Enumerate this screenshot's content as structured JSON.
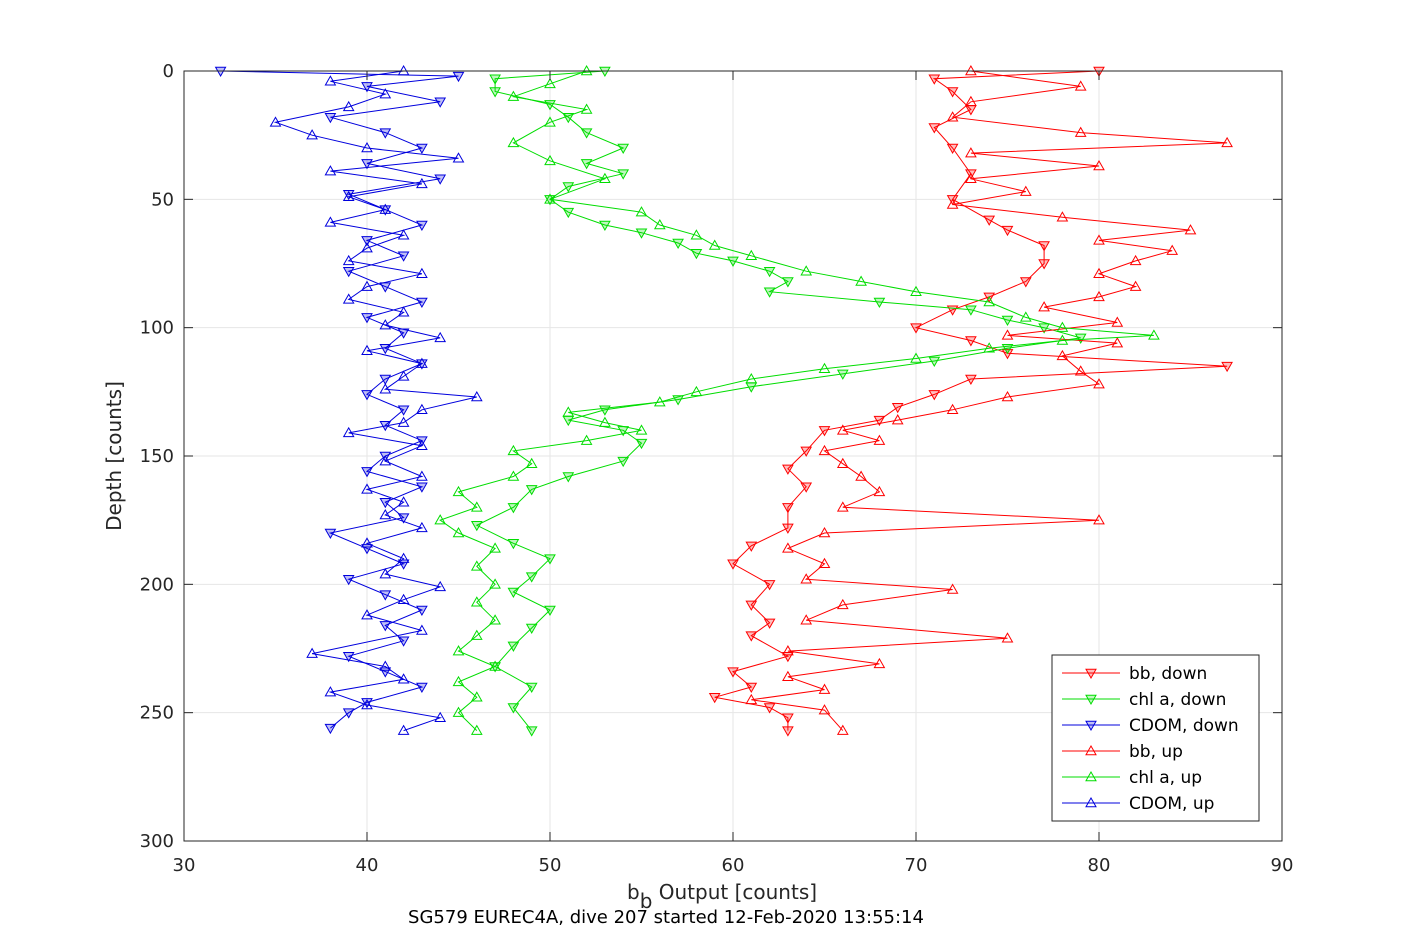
{
  "chart_data": {
    "type": "line",
    "xlabel_main": "b",
    "xlabel_sub": "b",
    "xlabel_rest": " Output [counts]",
    "ylabel": "Depth [counts]",
    "caption": "SG579 EUREC4A, dive 207 started 12-Feb-2020 13:55:14",
    "xlim": [
      30,
      90
    ],
    "ylim": [
      0,
      300
    ],
    "y_reversed": true,
    "grid": true,
    "legend_position": "bottom-right",
    "x_ticks": [
      "30",
      "40",
      "50",
      "60",
      "70",
      "80",
      "90"
    ],
    "y_ticks": [
      "0",
      "50",
      "100",
      "150",
      "200",
      "250",
      "300"
    ],
    "series": [
      {
        "name": "bb, down",
        "color": "#ff0000",
        "marker": "triangle-down",
        "points": [
          [
            80,
            0
          ],
          [
            71,
            3
          ],
          [
            72,
            8
          ],
          [
            73,
            15
          ],
          [
            71,
            22
          ],
          [
            72,
            30
          ],
          [
            73,
            40
          ],
          [
            72,
            50
          ],
          [
            74,
            58
          ],
          [
            75,
            62
          ],
          [
            77,
            68
          ],
          [
            77,
            75
          ],
          [
            76,
            82
          ],
          [
            74,
            88
          ],
          [
            72,
            93
          ],
          [
            70,
            100
          ],
          [
            73,
            105
          ],
          [
            75,
            110
          ],
          [
            87,
            115
          ],
          [
            73,
            120
          ],
          [
            71,
            126
          ],
          [
            69,
            131
          ],
          [
            68,
            136
          ],
          [
            65,
            140
          ],
          [
            64,
            148
          ],
          [
            63,
            155
          ],
          [
            64,
            162
          ],
          [
            63,
            170
          ],
          [
            63,
            178
          ],
          [
            61,
            185
          ],
          [
            60,
            192
          ],
          [
            62,
            200
          ],
          [
            61,
            208
          ],
          [
            62,
            215
          ],
          [
            61,
            220
          ],
          [
            63,
            228
          ],
          [
            60,
            234
          ],
          [
            61,
            240
          ],
          [
            59,
            244
          ],
          [
            62,
            248
          ],
          [
            63,
            252
          ],
          [
            63,
            257
          ]
        ]
      },
      {
        "name": "chl a, down",
        "color": "#00dd00",
        "marker": "triangle-down",
        "points": [
          [
            53,
            0
          ],
          [
            47,
            3
          ],
          [
            47,
            8
          ],
          [
            50,
            13
          ],
          [
            51,
            18
          ],
          [
            52,
            24
          ],
          [
            54,
            30
          ],
          [
            52,
            36
          ],
          [
            54,
            40
          ],
          [
            51,
            45
          ],
          [
            50,
            50
          ],
          [
            51,
            55
          ],
          [
            53,
            60
          ],
          [
            55,
            63
          ],
          [
            57,
            67
          ],
          [
            58,
            71
          ],
          [
            60,
            74
          ],
          [
            62,
            78
          ],
          [
            63,
            82
          ],
          [
            62,
            86
          ],
          [
            68,
            90
          ],
          [
            73,
            93
          ],
          [
            75,
            97
          ],
          [
            77,
            100
          ],
          [
            79,
            104
          ],
          [
            75,
            108
          ],
          [
            71,
            113
          ],
          [
            66,
            118
          ],
          [
            61,
            123
          ],
          [
            57,
            128
          ],
          [
            53,
            132
          ],
          [
            51,
            136
          ],
          [
            54,
            140
          ],
          [
            55,
            145
          ],
          [
            54,
            152
          ],
          [
            51,
            158
          ],
          [
            49,
            163
          ],
          [
            48,
            170
          ],
          [
            46,
            177
          ],
          [
            48,
            184
          ],
          [
            50,
            190
          ],
          [
            49,
            197
          ],
          [
            48,
            203
          ],
          [
            50,
            210
          ],
          [
            49,
            217
          ],
          [
            48,
            224
          ],
          [
            47,
            232
          ],
          [
            49,
            240
          ],
          [
            48,
            248
          ],
          [
            49,
            257
          ]
        ]
      },
      {
        "name": "CDOM, down",
        "color": "#0000dd",
        "marker": "triangle-down",
        "points": [
          [
            32,
            0
          ],
          [
            45,
            2
          ],
          [
            40,
            6
          ],
          [
            44,
            12
          ],
          [
            38,
            18
          ],
          [
            41,
            24
          ],
          [
            43,
            30
          ],
          [
            40,
            36
          ],
          [
            44,
            42
          ],
          [
            39,
            48
          ],
          [
            41,
            54
          ],
          [
            43,
            60
          ],
          [
            40,
            66
          ],
          [
            42,
            72
          ],
          [
            39,
            78
          ],
          [
            41,
            84
          ],
          [
            43,
            90
          ],
          [
            40,
            96
          ],
          [
            42,
            102
          ],
          [
            41,
            108
          ],
          [
            43,
            114
          ],
          [
            41,
            120
          ],
          [
            40,
            126
          ],
          [
            42,
            132
          ],
          [
            41,
            138
          ],
          [
            43,
            144
          ],
          [
            41,
            150
          ],
          [
            40,
            156
          ],
          [
            43,
            162
          ],
          [
            41,
            168
          ],
          [
            42,
            174
          ],
          [
            38,
            180
          ],
          [
            40,
            186
          ],
          [
            42,
            192
          ],
          [
            39,
            198
          ],
          [
            41,
            204
          ],
          [
            43,
            210
          ],
          [
            41,
            216
          ],
          [
            42,
            222
          ],
          [
            39,
            228
          ],
          [
            41,
            234
          ],
          [
            43,
            240
          ],
          [
            40,
            246
          ],
          [
            39,
            250
          ],
          [
            38,
            256
          ]
        ]
      },
      {
        "name": "bb, up",
        "color": "#ff0000",
        "marker": "triangle-up",
        "points": [
          [
            73,
            0
          ],
          [
            79,
            6
          ],
          [
            73,
            12
          ],
          [
            72,
            18
          ],
          [
            79,
            24
          ],
          [
            87,
            28
          ],
          [
            73,
            32
          ],
          [
            80,
            37
          ],
          [
            73,
            42
          ],
          [
            76,
            47
          ],
          [
            72,
            52
          ],
          [
            78,
            57
          ],
          [
            85,
            62
          ],
          [
            80,
            66
          ],
          [
            84,
            70
          ],
          [
            82,
            74
          ],
          [
            80,
            79
          ],
          [
            82,
            84
          ],
          [
            80,
            88
          ],
          [
            77,
            92
          ],
          [
            81,
            98
          ],
          [
            75,
            103
          ],
          [
            81,
            106
          ],
          [
            78,
            111
          ],
          [
            79,
            117
          ],
          [
            80,
            122
          ],
          [
            75,
            127
          ],
          [
            72,
            132
          ],
          [
            69,
            136
          ],
          [
            66,
            140
          ],
          [
            68,
            144
          ],
          [
            65,
            148
          ],
          [
            66,
            153
          ],
          [
            67,
            158
          ],
          [
            68,
            164
          ],
          [
            66,
            170
          ],
          [
            80,
            175
          ],
          [
            65,
            180
          ],
          [
            63,
            186
          ],
          [
            65,
            192
          ],
          [
            64,
            198
          ],
          [
            72,
            202
          ],
          [
            66,
            208
          ],
          [
            64,
            214
          ],
          [
            75,
            221
          ],
          [
            63,
            226
          ],
          [
            68,
            231
          ],
          [
            63,
            236
          ],
          [
            65,
            241
          ],
          [
            61,
            245
          ],
          [
            65,
            249
          ],
          [
            66,
            257
          ]
        ]
      },
      {
        "name": "chl a, up",
        "color": "#00dd00",
        "marker": "triangle-up",
        "points": [
          [
            52,
            0
          ],
          [
            50,
            5
          ],
          [
            48,
            10
          ],
          [
            52,
            15
          ],
          [
            50,
            20
          ],
          [
            48,
            28
          ],
          [
            50,
            35
          ],
          [
            53,
            42
          ],
          [
            50,
            50
          ],
          [
            55,
            55
          ],
          [
            56,
            60
          ],
          [
            58,
            64
          ],
          [
            59,
            68
          ],
          [
            61,
            72
          ],
          [
            64,
            78
          ],
          [
            67,
            82
          ],
          [
            70,
            86
          ],
          [
            74,
            90
          ],
          [
            76,
            96
          ],
          [
            78,
            100
          ],
          [
            83,
            103
          ],
          [
            78,
            105
          ],
          [
            74,
            108
          ],
          [
            70,
            112
          ],
          [
            65,
            116
          ],
          [
            61,
            120
          ],
          [
            58,
            125
          ],
          [
            56,
            129
          ],
          [
            51,
            133
          ],
          [
            53,
            137
          ],
          [
            55,
            140
          ],
          [
            52,
            144
          ],
          [
            48,
            148
          ],
          [
            49,
            153
          ],
          [
            48,
            158
          ],
          [
            45,
            164
          ],
          [
            46,
            170
          ],
          [
            44,
            175
          ],
          [
            45,
            180
          ],
          [
            47,
            186
          ],
          [
            46,
            193
          ],
          [
            47,
            200
          ],
          [
            46,
            207
          ],
          [
            47,
            214
          ],
          [
            46,
            220
          ],
          [
            45,
            226
          ],
          [
            47,
            232
          ],
          [
            45,
            238
          ],
          [
            46,
            244
          ],
          [
            45,
            250
          ],
          [
            46,
            257
          ]
        ]
      },
      {
        "name": "CDOM, up",
        "color": "#0000dd",
        "marker": "triangle-up",
        "points": [
          [
            42,
            0
          ],
          [
            38,
            4
          ],
          [
            41,
            9
          ],
          [
            39,
            14
          ],
          [
            35,
            20
          ],
          [
            37,
            25
          ],
          [
            40,
            30
          ],
          [
            45,
            34
          ],
          [
            38,
            39
          ],
          [
            43,
            44
          ],
          [
            39,
            49
          ],
          [
            41,
            54
          ],
          [
            38,
            59
          ],
          [
            42,
            64
          ],
          [
            40,
            69
          ],
          [
            39,
            74
          ],
          [
            43,
            79
          ],
          [
            40,
            84
          ],
          [
            39,
            89
          ],
          [
            42,
            94
          ],
          [
            41,
            99
          ],
          [
            44,
            104
          ],
          [
            40,
            109
          ],
          [
            43,
            114
          ],
          [
            42,
            119
          ],
          [
            41,
            124
          ],
          [
            46,
            127
          ],
          [
            43,
            132
          ],
          [
            42,
            137
          ],
          [
            39,
            141
          ],
          [
            43,
            146
          ],
          [
            41,
            152
          ],
          [
            43,
            158
          ],
          [
            40,
            163
          ],
          [
            42,
            168
          ],
          [
            41,
            173
          ],
          [
            43,
            178
          ],
          [
            40,
            184
          ],
          [
            42,
            190
          ],
          [
            41,
            196
          ],
          [
            44,
            201
          ],
          [
            42,
            206
          ],
          [
            40,
            212
          ],
          [
            43,
            218
          ],
          [
            37,
            227
          ],
          [
            41,
            232
          ],
          [
            42,
            237
          ],
          [
            38,
            242
          ],
          [
            40,
            247
          ],
          [
            44,
            252
          ],
          [
            42,
            257
          ]
        ]
      }
    ]
  }
}
